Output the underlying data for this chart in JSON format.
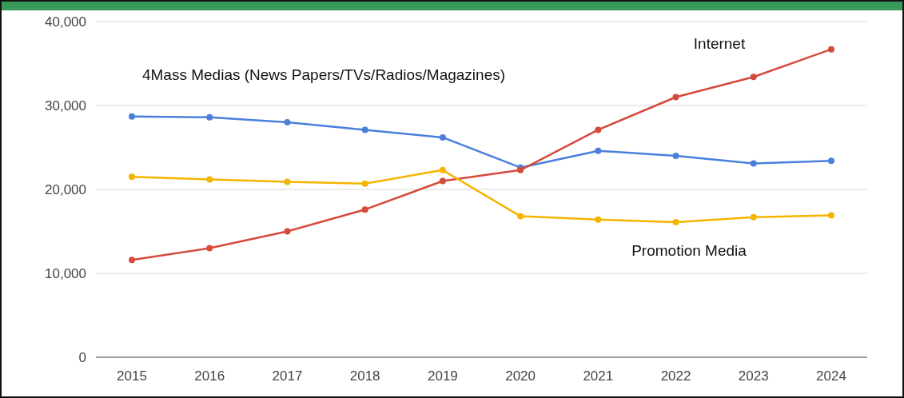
{
  "chart_data": {
    "type": "line",
    "categories": [
      "2015",
      "2016",
      "2017",
      "2018",
      "2019",
      "2020",
      "2021",
      "2022",
      "2023",
      "2024"
    ],
    "ylim": [
      0,
      40000
    ],
    "yticks": [
      {
        "value": 0,
        "label": "0"
      },
      {
        "value": 10000,
        "label": "10,000"
      },
      {
        "value": 20000,
        "label": "20,000"
      },
      {
        "value": 30000,
        "label": "30,000"
      },
      {
        "value": 40000,
        "label": "40,000"
      }
    ],
    "grid": "y",
    "marker": "circle",
    "line_style": "solid",
    "series": [
      {
        "name": "4Mass Medias (News Papers/TVs/Radios/Magazines)",
        "color": "#4a7fdc",
        "values": [
          28700,
          28600,
          28000,
          27100,
          26200,
          22600,
          24600,
          24000,
          23100,
          23400
        ]
      },
      {
        "name": "Internet",
        "color": "#d64a3b",
        "values": [
          11600,
          13000,
          15000,
          17600,
          21000,
          22300,
          27100,
          31000,
          33400,
          36700
        ]
      },
      {
        "name": "Promotion Media",
        "color": "#f4b400",
        "values": [
          21500,
          21200,
          20900,
          20700,
          22300,
          16800,
          16400,
          16100,
          16700,
          16900
        ]
      }
    ]
  }
}
